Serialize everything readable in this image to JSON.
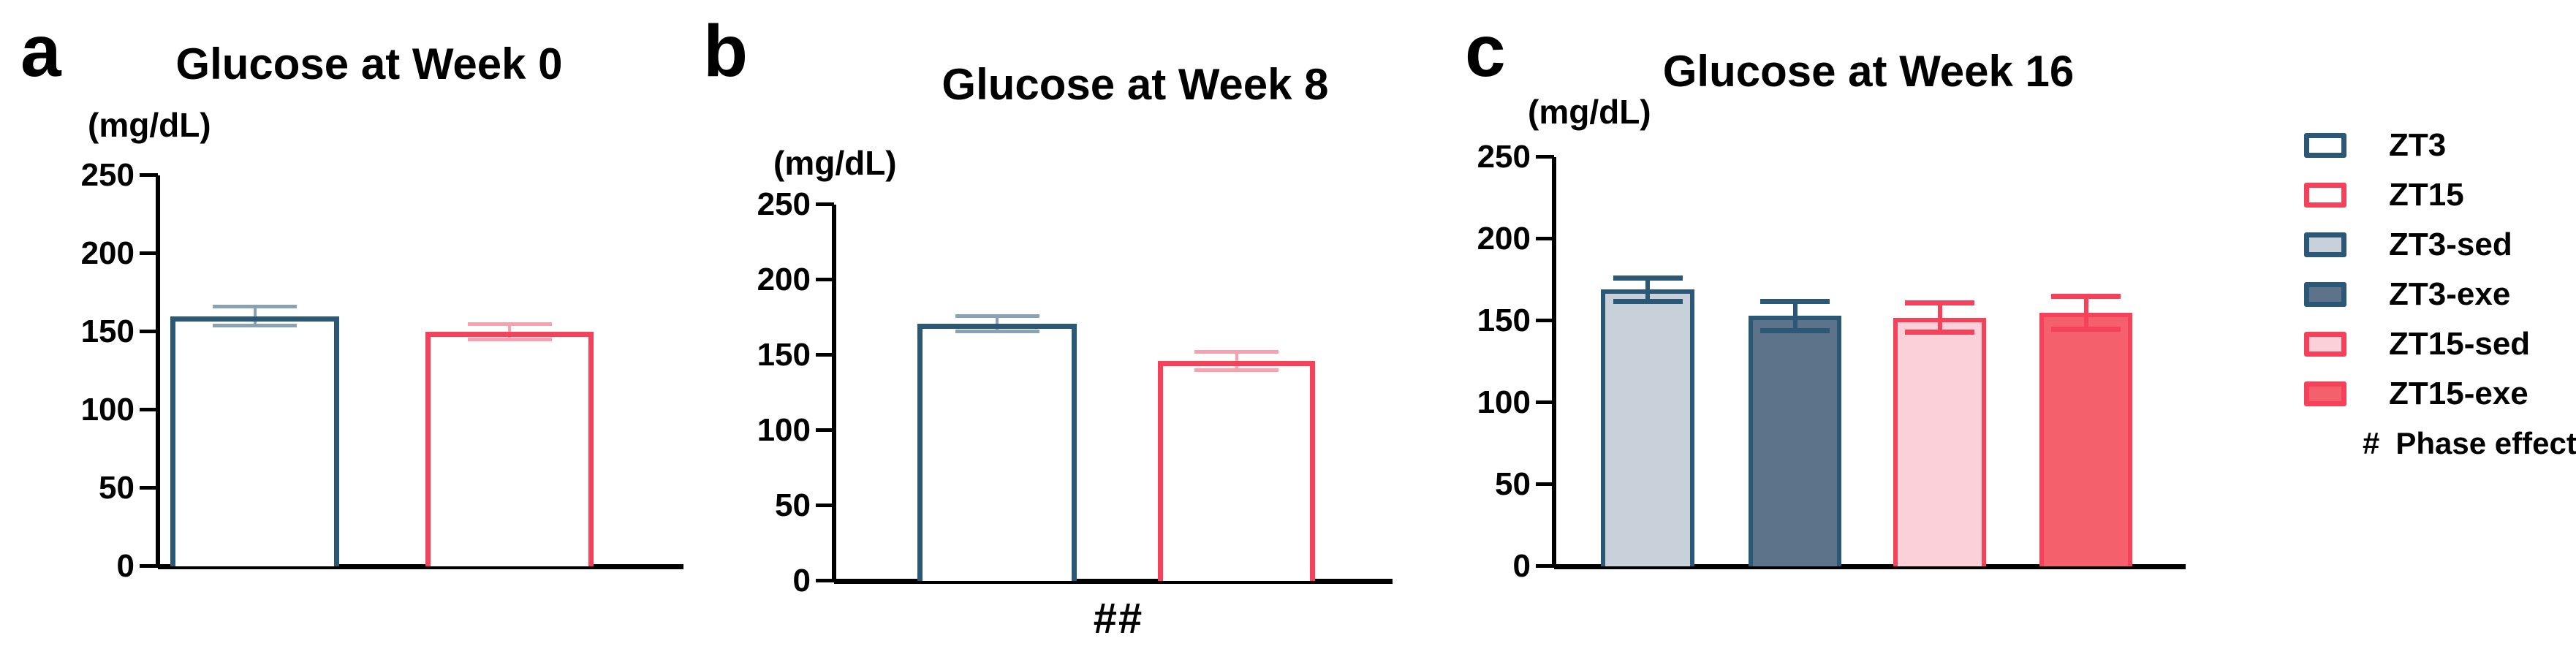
{
  "figure": {
    "kind": "three-panel bar figure",
    "background": "#FFFFFF",
    "accent_colors": {
      "navy": "#2B5877",
      "red": "#F5425A"
    }
  },
  "chart_data": [
    {
      "type": "bar",
      "panel_letter": "a",
      "title": "Glucose at Week 0",
      "ylabel": "(mg/dL)",
      "xlabel": "",
      "ylim": [
        0,
        250
      ],
      "yticks": [
        0,
        50,
        100,
        150,
        200,
        250
      ],
      "grid": false,
      "categories": [
        "ZT3",
        "ZT15"
      ],
      "values": [
        160,
        150
      ],
      "errors": [
        6,
        5
      ],
      "bar_fills": [
        "#FFFFFF",
        "#FFFFFF"
      ],
      "bar_outlines": [
        "#2B5877",
        "#F5425A"
      ],
      "error_colors": [
        "#8AA2B5",
        "#F9A0AE"
      ],
      "annotation": ""
    },
    {
      "type": "bar",
      "panel_letter": "b",
      "title": "Glucose at Week 8",
      "ylabel": "(mg/dL)",
      "xlabel": "",
      "ylim": [
        0,
        250
      ],
      "yticks": [
        0,
        50,
        100,
        150,
        200,
        250
      ],
      "grid": false,
      "categories": [
        "ZT3",
        "ZT15"
      ],
      "values": [
        171,
        146
      ],
      "errors": [
        5,
        6
      ],
      "bar_fills": [
        "#FFFFFF",
        "#FFFFFF"
      ],
      "bar_outlines": [
        "#2B5877",
        "#F5425A"
      ],
      "error_colors": [
        "#8AA2B5",
        "#F9A0AE"
      ],
      "annotation": "##"
    },
    {
      "type": "bar",
      "panel_letter": "c",
      "title": "Glucose at Week 16",
      "ylabel": "(mg/dL)",
      "xlabel": "",
      "ylim": [
        0,
        250
      ],
      "yticks": [
        0,
        50,
        100,
        150,
        200,
        250
      ],
      "grid": false,
      "categories": [
        "ZT3-sed",
        "ZT3-exe",
        "ZT15-sed",
        "ZT15-exe"
      ],
      "values": [
        169,
        153,
        152,
        155
      ],
      "errors": [
        7,
        9,
        9,
        10
      ],
      "bar_fills": [
        "#C8D1D9",
        "#5C7389",
        "#FCD0D9",
        "#F5606D"
      ],
      "bar_outlines": [
        "#2B5877",
        "#2B5877",
        "#F5425A",
        "#F5425A"
      ],
      "error_colors": [
        "#2B5877",
        "#2B5877",
        "#F5425A",
        "#F5425A"
      ],
      "annotation": ""
    }
  ],
  "legend": {
    "position": "right",
    "items": [
      {
        "label": "ZT3",
        "fill": "#FFFFFF",
        "outline": "#2B5877"
      },
      {
        "label": "ZT15",
        "fill": "#FFFFFF",
        "outline": "#F5425A"
      },
      {
        "label": "ZT3-sed",
        "fill": "#C8D1D9",
        "outline": "#2B5877"
      },
      {
        "label": "ZT3-exe",
        "fill": "#5C7389",
        "outline": "#2B5877"
      },
      {
        "label": "ZT15-sed",
        "fill": "#FCD0D9",
        "outline": "#F5425A"
      },
      {
        "label": "ZT15-exe",
        "fill": "#F5606D",
        "outline": "#F5425A"
      }
    ],
    "note_symbol": "#",
    "note_text": "Phase effect"
  }
}
